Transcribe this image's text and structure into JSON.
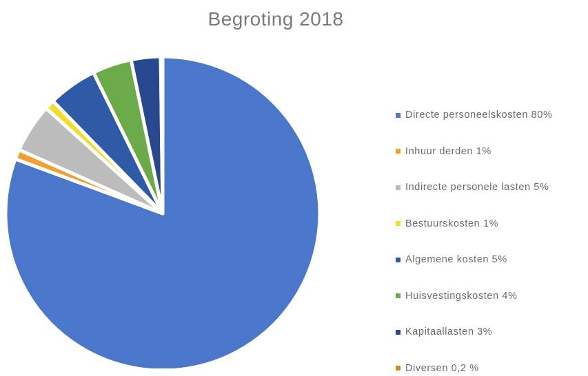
{
  "chart_data": {
    "type": "pie",
    "title": "Begroting 2018",
    "legend_position": "right",
    "slices": [
      {
        "label": "Directe personeelskosten 80%",
        "value": 80,
        "color": "#4a77c9"
      },
      {
        "label": "Inhuur derden 1%",
        "value": 1,
        "color": "#f0a030"
      },
      {
        "label": "Indirecte personele lasten 5%",
        "value": 5,
        "color": "#bcbcbc"
      },
      {
        "label": "Bestuurskosten  1%",
        "value": 1,
        "color": "#f2dd2a"
      },
      {
        "label": "Algemene kosten 5%",
        "value": 5,
        "color": "#2f5aa8"
      },
      {
        "label": "Huisvestingskosten 4%",
        "value": 4,
        "color": "#6aaa48"
      },
      {
        "label": "Kapitaallasten 3%",
        "value": 3,
        "color": "#27488e"
      },
      {
        "label": "Diversen 0,2 %",
        "value": 0.2,
        "color": "#c99020"
      }
    ]
  }
}
